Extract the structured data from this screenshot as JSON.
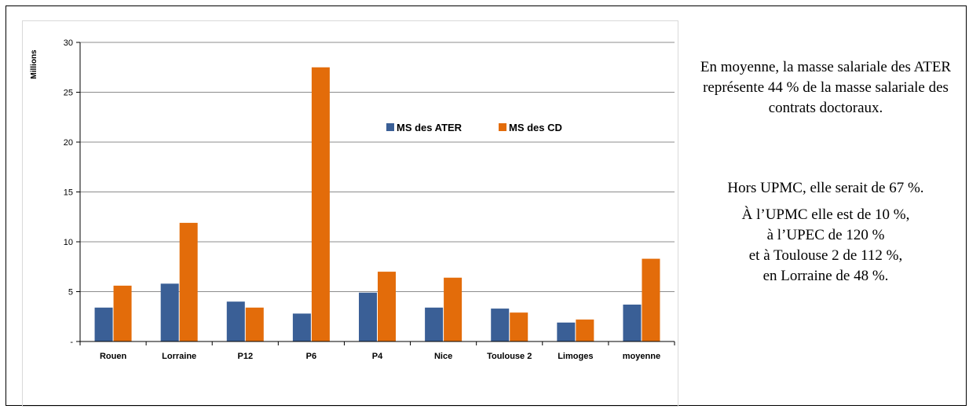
{
  "chart_data": {
    "type": "bar",
    "ylabel": "Millions",
    "ylim": [
      0,
      30
    ],
    "yticks": [
      0,
      5,
      10,
      15,
      20,
      25,
      30
    ],
    "ytick_labels": [
      "-",
      "5",
      "10",
      "15",
      "20",
      "25",
      "30"
    ],
    "grid": true,
    "legend_position": "top-right",
    "categories": [
      "Rouen",
      "Lorraine",
      "P12",
      "P6",
      "P4",
      "Nice",
      "Toulouse  2",
      "Limoges",
      "moyenne"
    ],
    "series": [
      {
        "name": "MS des ATER",
        "color": "#3a5f96",
        "values": [
          3.4,
          5.8,
          4.0,
          2.8,
          4.9,
          3.4,
          3.3,
          1.9,
          3.7
        ]
      },
      {
        "name": "MS des CD",
        "color": "#e36c0a",
        "values": [
          5.6,
          11.9,
          3.4,
          27.5,
          7.0,
          6.4,
          2.9,
          2.2,
          8.3
        ]
      }
    ]
  },
  "side_text": {
    "para1": "En moyenne, la masse salariale des ATER représente 44 % de la masse salariale des contrats doctoraux.",
    "para2": "Hors UPMC, elle serait de 67 %.",
    "para3_lines": [
      "À l’UPMC elle est de 10 %,",
      "à l’UPEC de 120 %",
      "et à Toulouse 2 de 112 %,",
      "en Lorraine de 48 %."
    ]
  }
}
